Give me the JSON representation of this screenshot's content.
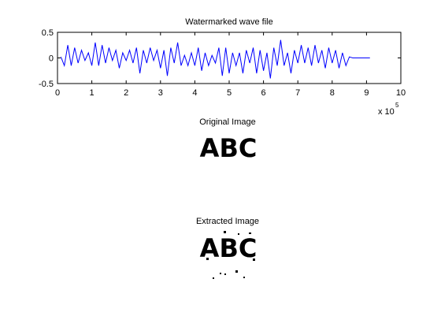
{
  "chart_data": {
    "type": "line",
    "title": "Watermarked wave file",
    "x": [
      0.1,
      0.2,
      0.3,
      0.4,
      0.5,
      0.6,
      0.7,
      0.8,
      0.9,
      1.0,
      1.1,
      1.2,
      1.3,
      1.4,
      1.5,
      1.6,
      1.7,
      1.8,
      1.9,
      2.0,
      2.1,
      2.2,
      2.3,
      2.4,
      2.5,
      2.6,
      2.7,
      2.8,
      2.9,
      3.0,
      3.1,
      3.2,
      3.3,
      3.4,
      3.5,
      3.6,
      3.7,
      3.8,
      3.9,
      4.0,
      4.1,
      4.2,
      4.3,
      4.4,
      4.5,
      4.6,
      4.7,
      4.8,
      4.9,
      5.0,
      5.1,
      5.2,
      5.3,
      5.4,
      5.5,
      5.6,
      5.7,
      5.8,
      5.9,
      6.0,
      6.1,
      6.2,
      6.3,
      6.4,
      6.5,
      6.6,
      6.7,
      6.8,
      6.9,
      7.0,
      7.1,
      7.2,
      7.3,
      7.4,
      7.5,
      7.6,
      7.7,
      7.8,
      7.9,
      8.0,
      8.1,
      8.2,
      8.3,
      8.4,
      8.5,
      8.6,
      8.7,
      8.8,
      8.9,
      9.0,
      9.1
    ],
    "values": [
      0.02,
      -0.15,
      0.25,
      -0.15,
      0.2,
      -0.1,
      0.15,
      -0.05,
      0.1,
      -0.15,
      0.3,
      -0.15,
      0.25,
      -0.1,
      0.2,
      -0.05,
      0.15,
      -0.2,
      0.1,
      -0.05,
      0.15,
      -0.1,
      0.2,
      -0.3,
      0.15,
      -0.1,
      0.2,
      -0.05,
      0.15,
      -0.2,
      0.15,
      -0.35,
      0.2,
      -0.1,
      0.3,
      -0.15,
      0.05,
      -0.15,
      0.1,
      -0.15,
      0.2,
      -0.25,
      0.1,
      -0.15,
      0.05,
      -0.1,
      0.2,
      -0.35,
      0.2,
      -0.3,
      0.1,
      -0.15,
      0.1,
      -0.3,
      0.15,
      -0.1,
      0.2,
      -0.3,
      0.15,
      -0.25,
      0.1,
      -0.4,
      0.2,
      -0.15,
      0.35,
      -0.15,
      0.1,
      -0.3,
      0.15,
      -0.1,
      0.25,
      -0.1,
      0.2,
      -0.15,
      0.25,
      -0.1,
      0.15,
      -0.2,
      0.2,
      -0.1,
      0.15,
      -0.2,
      0.1,
      -0.15,
      0.02,
      0,
      0,
      0,
      0,
      0,
      0
    ],
    "color": "#0000ff",
    "xlim": [
      0,
      10
    ],
    "xticks": [
      0,
      1,
      2,
      3,
      4,
      5,
      6,
      7,
      8,
      9,
      10
    ],
    "ylim": [
      -0.5,
      0.5
    ],
    "yticks": [
      -0.5,
      0,
      0.5
    ],
    "x_scale_label": "x 10",
    "x_scale_exponent": "5"
  },
  "images": [
    {
      "title": "Original Image",
      "content": "ABC"
    },
    {
      "title": "Extracted Image",
      "content": "ABC"
    }
  ]
}
